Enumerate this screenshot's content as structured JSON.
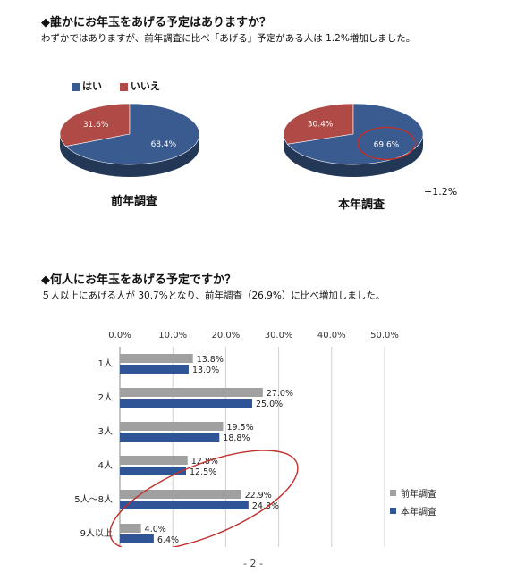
{
  "section1": {
    "heading": "◆誰かにお年玉をあげる予定はありますか？",
    "subtext": "わずかではありますが、前年調査に比べ「あげる」予定がある人は 1.2%増加しました。",
    "legend": [
      {
        "label": "はい",
        "color": "#3a5b8f"
      },
      {
        "label": "いいえ",
        "color": "#b04a46"
      }
    ],
    "diff_label": "+1.2%"
  },
  "section2": {
    "heading": "◆何人にお年玉をあげる予定ですか？",
    "subtext": "５人以上にあげる人が 30.7%となり、前年調査（26.9%）に比べ増加しました。"
  },
  "page_number": "- 2 -",
  "chart_data": [
    {
      "type": "pie",
      "title": "前年調査",
      "categories": [
        "はい",
        "いいえ"
      ],
      "values": [
        68.4,
        31.6
      ],
      "value_labels": [
        "68.4%",
        "31.6%"
      ],
      "colors": [
        "#3a5b8f",
        "#b04a46"
      ]
    },
    {
      "type": "pie",
      "title": "本年調査",
      "categories": [
        "はい",
        "いいえ"
      ],
      "values": [
        69.6,
        30.4
      ],
      "value_labels": [
        "69.6%",
        "30.4%"
      ],
      "colors": [
        "#3a5b8f",
        "#b04a46"
      ]
    },
    {
      "type": "bar",
      "orientation": "horizontal",
      "categories": [
        "1人",
        "2人",
        "3人",
        "4人",
        "5人～8人",
        "9人以上"
      ],
      "series": [
        {
          "name": "前年調査",
          "color": "#a0a0a0",
          "values": [
            13.8,
            27.0,
            19.5,
            12.8,
            22.9,
            4.0
          ],
          "labels": [
            "13.8%",
            "27.0%",
            "19.5%",
            "12.8%",
            "22.9%",
            "4.0%"
          ]
        },
        {
          "name": "本年調査",
          "color": "#2f5597",
          "values": [
            13.0,
            25.0,
            18.8,
            12.5,
            24.3,
            6.4
          ],
          "labels": [
            "13.0%",
            "25.0%",
            "18.8%",
            "12.5%",
            "24.3%",
            "6.4%"
          ]
        }
      ],
      "xlim": [
        0,
        50
      ],
      "xticks": [
        "0.0%",
        "10.0%",
        "20.0%",
        "30.0%",
        "40.0%",
        "50.0%"
      ],
      "grid": true,
      "legend_position": "bottom-right"
    }
  ]
}
